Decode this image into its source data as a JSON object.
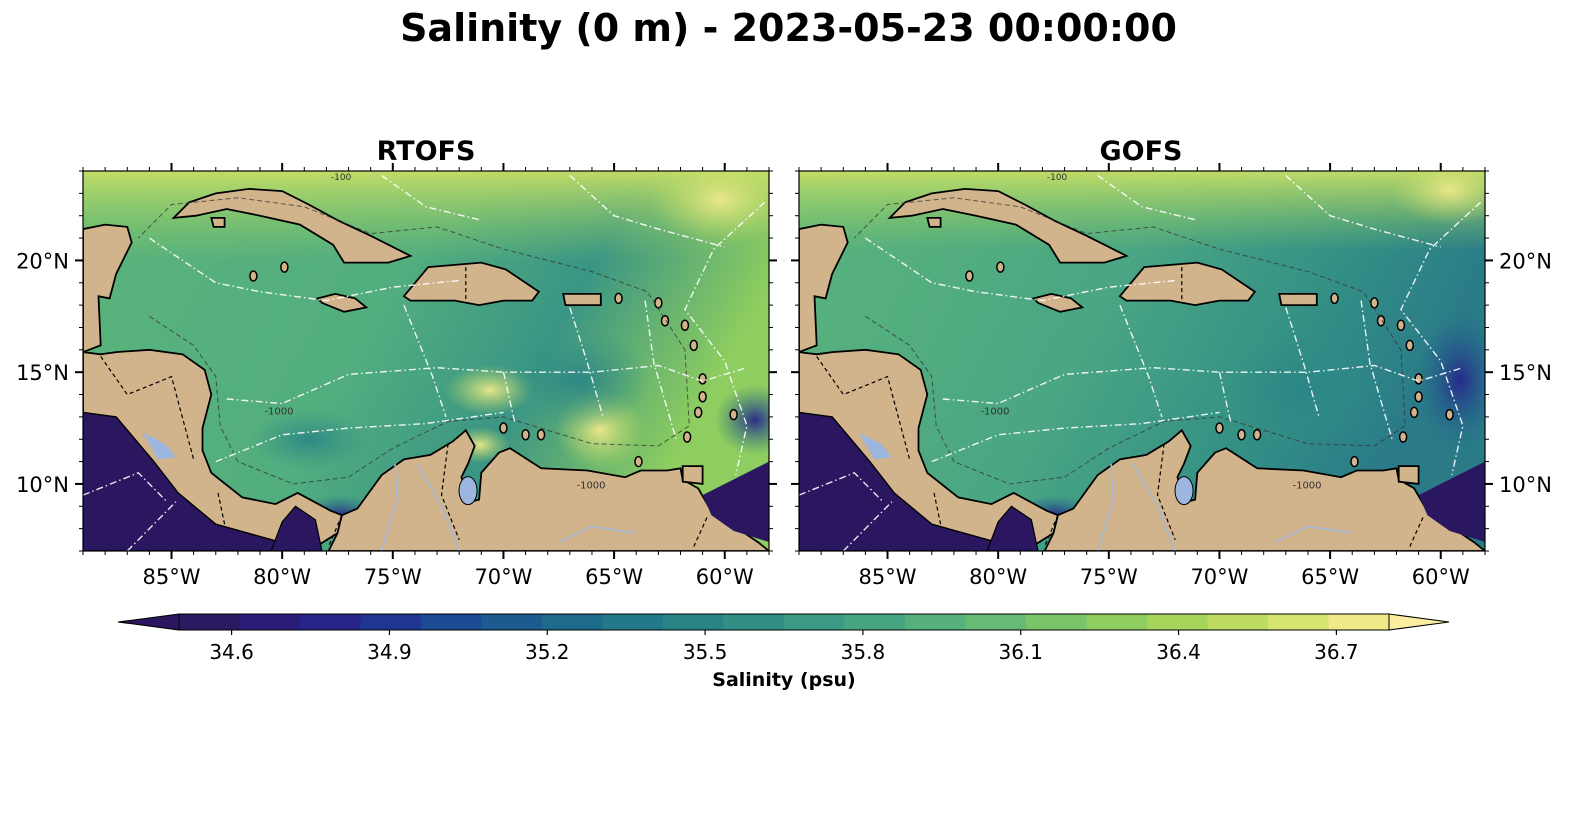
{
  "figure": {
    "title": "Salinity (0 m) - 2023-05-23 00:00:00"
  },
  "panels": [
    {
      "title": "RTOFS"
    },
    {
      "title": "GOFS"
    }
  ],
  "map": {
    "lon_range": [
      -89,
      -58
    ],
    "lat_range": [
      7,
      24
    ],
    "x_ticks": [
      {
        "lon": -85,
        "label": "85°W"
      },
      {
        "lon": -80,
        "label": "80°W"
      },
      {
        "lon": -75,
        "label": "75°W"
      },
      {
        "lon": -70,
        "label": "70°W"
      },
      {
        "lon": -65,
        "label": "65°W"
      },
      {
        "lon": -60,
        "label": "60°W"
      }
    ],
    "y_ticks": [
      {
        "lat": 20,
        "label": "20°N"
      },
      {
        "lat": 15,
        "label": "15°N"
      },
      {
        "lat": 10,
        "label": "10°N"
      }
    ],
    "land_color": "#d2b48c",
    "lake_color": "#9cb6e0",
    "contour_labels": [
      "-1000",
      "-100"
    ]
  },
  "colorbar": {
    "label": "Salinity (psu)",
    "min": 34.5,
    "max": 36.8,
    "step": 0.1,
    "extend": "both",
    "ticks": [
      "34.6",
      "34.9",
      "35.2",
      "35.5",
      "35.8",
      "36.1",
      "36.4",
      "36.7"
    ],
    "colors": [
      "#2a1a62",
      "#2a1d77",
      "#27248a",
      "#1f3592",
      "#1c4a93",
      "#1c5a8f",
      "#1e6a8c",
      "#237889",
      "#2a8486",
      "#338f85",
      "#3d9a84",
      "#47a582",
      "#55b07c",
      "#66ba74",
      "#7ac469",
      "#8ecd5f",
      "#a6d55c",
      "#bfdc62",
      "#d6e470",
      "#efe98a"
    ],
    "under_color": "#2b1660",
    "over_color": "#fbeea0"
  }
}
